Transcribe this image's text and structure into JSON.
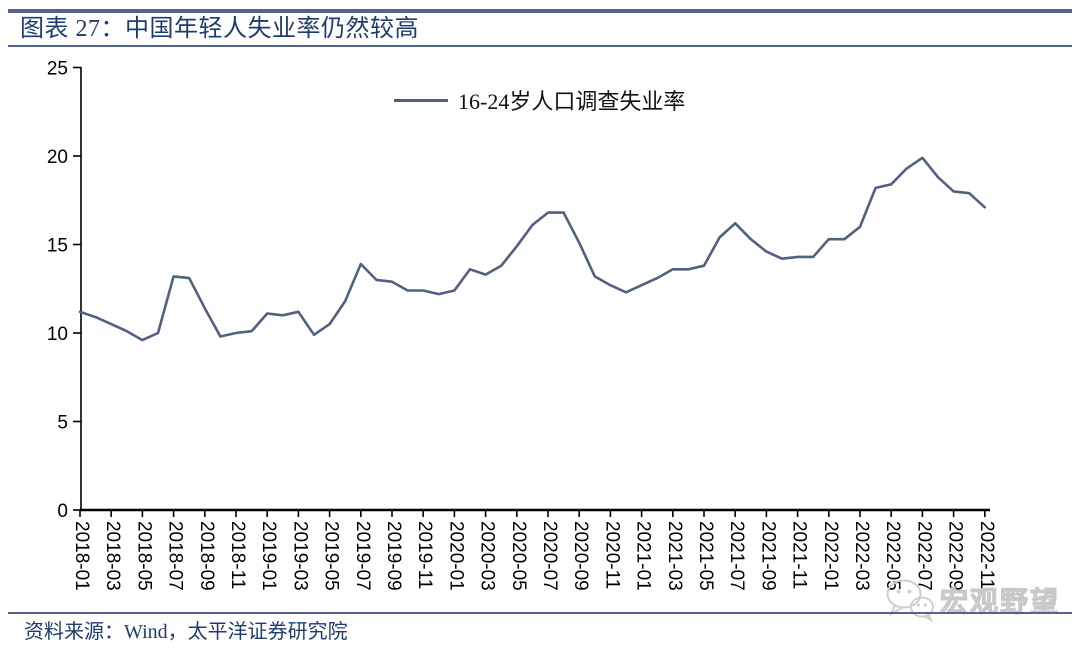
{
  "header": {
    "title": "图表 27：中国年轻人失业率仍然较高"
  },
  "legend": {
    "label": "16-24岁人口调查失业率"
  },
  "footer": {
    "source": "资料来源：Wind，太平洋证券研究院"
  },
  "watermark": {
    "icon": "wechat-icon",
    "text": "宏观野望"
  },
  "colors": {
    "line": "#51617f",
    "navy_text": "#1e3d6e",
    "rule": "#55648c",
    "axis": "#000000",
    "tick_label": "#000000",
    "watermark_gray": "#d9d9d9"
  },
  "chart_data": {
    "type": "line",
    "title": "图表 27：中国年轻人失业率仍然较高",
    "xlabel": "",
    "ylabel": "",
    "ylim": [
      0,
      25
    ],
    "y_ticks": [
      0,
      5,
      10,
      15,
      20,
      25
    ],
    "grid": false,
    "legend_position": "top-center",
    "x": [
      "2018-01",
      "2018-02",
      "2018-03",
      "2018-04",
      "2018-05",
      "2018-06",
      "2018-07",
      "2018-08",
      "2018-09",
      "2018-10",
      "2018-11",
      "2018-12",
      "2019-01",
      "2019-02",
      "2019-03",
      "2019-04",
      "2019-05",
      "2019-06",
      "2019-07",
      "2019-08",
      "2019-09",
      "2019-10",
      "2019-11",
      "2019-12",
      "2020-01",
      "2020-02",
      "2020-03",
      "2020-04",
      "2020-05",
      "2020-06",
      "2020-07",
      "2020-08",
      "2020-09",
      "2020-10",
      "2020-11",
      "2020-12",
      "2021-01",
      "2021-02",
      "2021-03",
      "2021-04",
      "2021-05",
      "2021-06",
      "2021-07",
      "2021-08",
      "2021-09",
      "2021-10",
      "2021-11",
      "2021-12",
      "2022-01",
      "2022-02",
      "2022-03",
      "2022-04",
      "2022-05",
      "2022-06",
      "2022-07",
      "2022-08",
      "2022-09",
      "2022-10",
      "2022-11"
    ],
    "x_tick_labels": [
      "2018-01",
      "2018-03",
      "2018-05",
      "2018-07",
      "2018-09",
      "2018-11",
      "2019-01",
      "2019-03",
      "2019-05",
      "2019-07",
      "2019-09",
      "2019-11",
      "2020-01",
      "2020-03",
      "2020-05",
      "2020-07",
      "2020-09",
      "2020-11",
      "2021-01",
      "2021-03",
      "2021-05",
      "2021-07",
      "2021-09",
      "2021-11",
      "2022-01",
      "2022-03",
      "2022-05",
      "2022-07",
      "2022-09",
      "2022-11"
    ],
    "series": [
      {
        "name": "16-24岁人口调查失业率",
        "values": [
          11.2,
          10.9,
          10.5,
          10.1,
          9.6,
          10.0,
          13.2,
          13.1,
          11.4,
          9.8,
          10.0,
          10.1,
          11.1,
          11.0,
          11.2,
          9.9,
          10.5,
          11.8,
          13.9,
          13.0,
          12.9,
          12.4,
          12.4,
          12.2,
          12.4,
          13.6,
          13.3,
          13.8,
          14.9,
          16.1,
          16.8,
          16.8,
          15.1,
          13.2,
          12.7,
          12.3,
          12.7,
          13.1,
          13.6,
          13.6,
          13.8,
          15.4,
          16.2,
          15.3,
          14.6,
          14.2,
          14.3,
          14.3,
          15.3,
          15.3,
          16.0,
          18.2,
          18.4,
          19.3,
          19.9,
          18.8,
          18.0,
          17.9,
          17.1
        ]
      }
    ]
  }
}
